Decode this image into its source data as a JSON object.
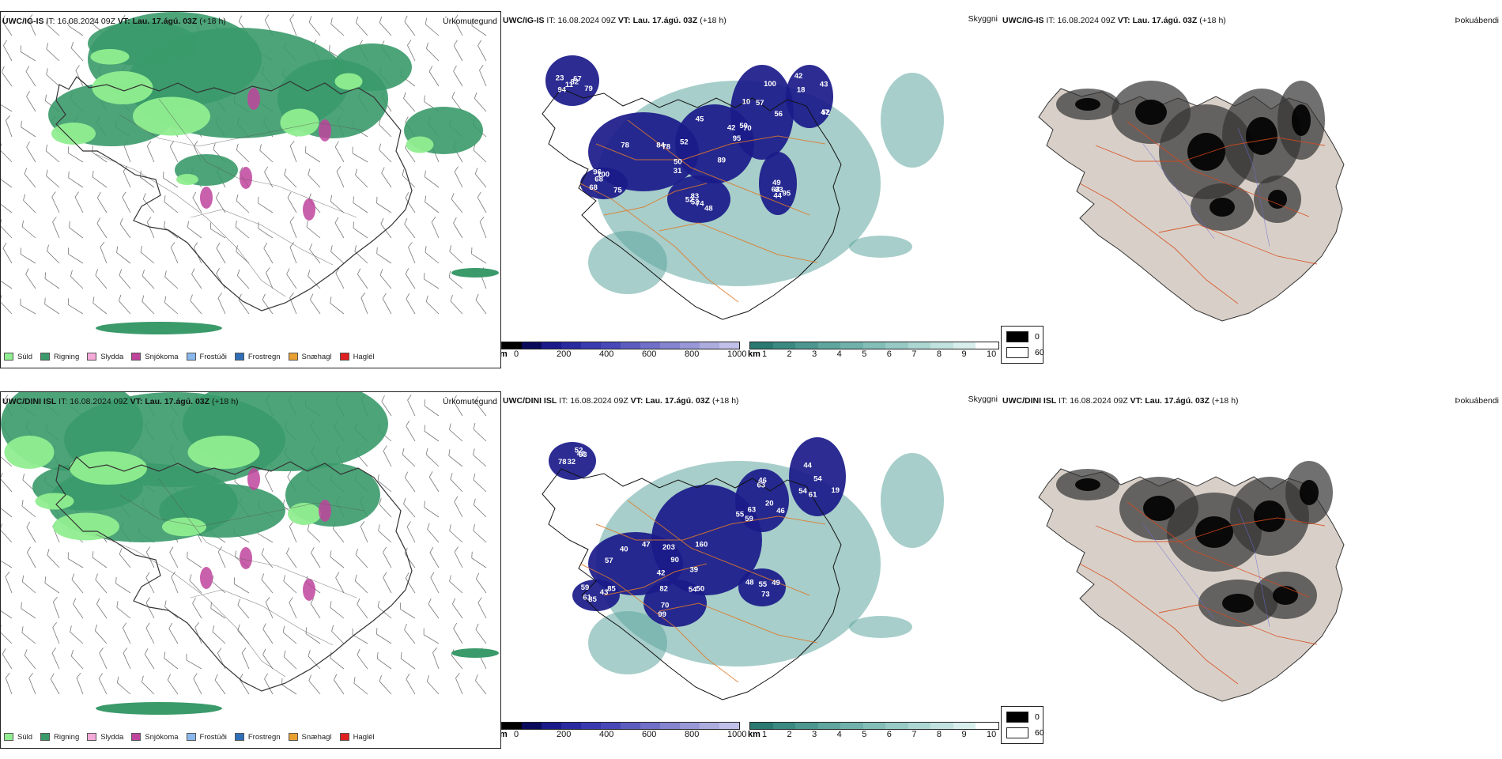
{
  "rows": [
    {
      "model": "UWC/IG-IS",
      "it_label": "IT:",
      "it_value": "16.08.2024 09Z",
      "vt_label": "VT:",
      "vt_value": "Lau. 17.ágú. 03Z",
      "lead": "(+18 h)",
      "precip_panel_name": "Úrkomutegund",
      "visibility_panel_name": "Skyggni",
      "fog_panel_name": "Þokuábendi",
      "cloud_labels": [
        "82",
        "78",
        "45",
        "56",
        "52",
        "100",
        "74",
        "49",
        "11",
        "78",
        "95",
        "100",
        "42",
        "75",
        "83",
        "95",
        "67",
        "52",
        "50",
        "57",
        "47",
        "68",
        "48",
        "63",
        "79",
        "84",
        "89",
        "70",
        "43",
        "68",
        "52",
        "83",
        "94",
        "50",
        "42",
        "10",
        "18",
        "96",
        "52",
        "44",
        "23",
        "31"
      ]
    },
    {
      "model": "UWC/DINI ISL",
      "it_label": "IT:",
      "it_value": "16.08.2024 09Z",
      "vt_label": "VT:",
      "vt_value": "Lau. 17.ágú. 03Z",
      "lead": "(+18 h)",
      "precip_panel_name": "Úrkomutegund",
      "visibility_panel_name": "Skyggni",
      "fog_panel_name": "Þokuábendi",
      "cloud_labels": [
        "52",
        "47",
        "59",
        "63",
        "61",
        "59",
        "82",
        "55",
        "42",
        "40",
        "39",
        "63",
        "54",
        "85",
        "54",
        "49",
        "93",
        "57",
        "55",
        "46",
        "44",
        "43",
        "70",
        "73",
        "32",
        "203",
        "160",
        "46",
        "54",
        "61",
        "99",
        "48",
        "78",
        "42",
        "90",
        "20",
        "19",
        "85",
        "50"
      ]
    }
  ],
  "precip_legend": [
    {
      "label": "Súld",
      "color": "#90ee90"
    },
    {
      "label": "Rigning",
      "color": "#3a9a6a"
    },
    {
      "label": "Slydda",
      "color": "#f4a9d8"
    },
    {
      "label": "Snjókoma",
      "color": "#c0449c"
    },
    {
      "label": "Frostúði",
      "color": "#8ab8ec"
    },
    {
      "label": "Frostregn",
      "color": "#2f6fb8"
    },
    {
      "label": "Snæhagl",
      "color": "#e8a030"
    },
    {
      "label": "Haglél",
      "color": "#e02020"
    }
  ],
  "cloud_base_bar": {
    "unit": "m",
    "ticks": [
      "0",
      "200",
      "400",
      "600",
      "800",
      "1000"
    ],
    "colors": [
      "#000000",
      "#0a0a5a",
      "#1a1a8a",
      "#2a2aa0",
      "#3a3ab0",
      "#4848b8",
      "#5c5cc0",
      "#7070c8",
      "#8484d0",
      "#9898d8",
      "#acacdf",
      "#c0c0e8"
    ]
  },
  "visibility_bar": {
    "unit": "km",
    "ticks": [
      "1",
      "2",
      "3",
      "4",
      "5",
      "6",
      "7",
      "8",
      "9",
      "10"
    ],
    "colors": [
      "#2a7a72",
      "#3a8a82",
      "#4c9890",
      "#5ea69e",
      "#70b2ab",
      "#84beb8",
      "#98cac5",
      "#acd6d2",
      "#c2e2df",
      "#d8eeec",
      "#ffffff"
    ]
  },
  "fog_legend": [
    {
      "value": "0",
      "color": "#000000"
    },
    {
      "value": "60",
      "color": "#ffffff"
    }
  ],
  "colors": {
    "rain": "#3a9a6a",
    "drizzle": "#90ee90",
    "snow": "#c0449c",
    "cloud_base": "#1a1a8a",
    "visibility": "#5ea69e",
    "roads": "#e07a2a",
    "fog_dark": "#333333"
  }
}
